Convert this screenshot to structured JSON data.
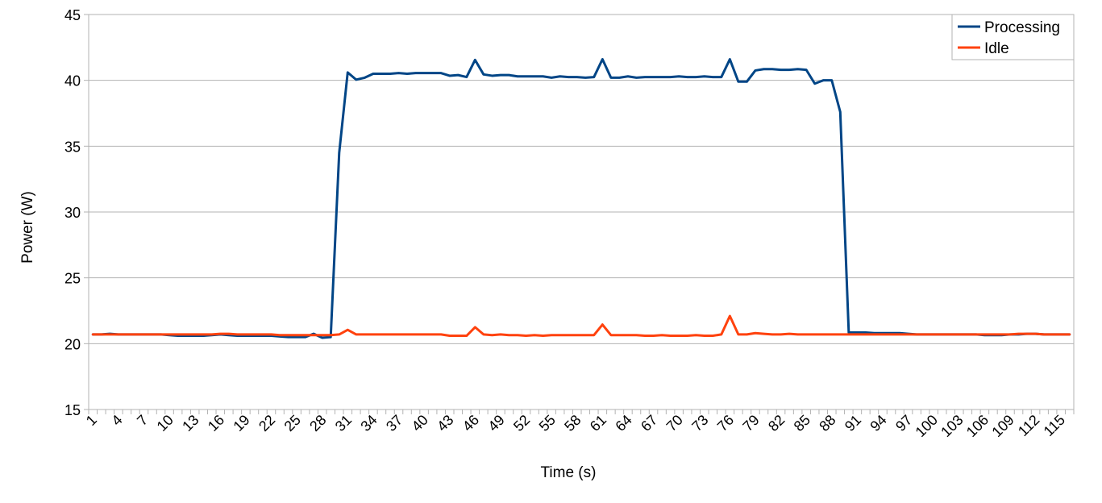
{
  "chart_data": {
    "type": "line",
    "title": "",
    "xlabel": "Time (s)",
    "ylabel": "Power (W)",
    "ylim": [
      15,
      45
    ],
    "yticks": [
      15,
      20,
      25,
      30,
      35,
      40,
      45
    ],
    "grid": true,
    "legend_position": "top-right",
    "x": [
      1,
      2,
      3,
      4,
      5,
      6,
      7,
      8,
      9,
      10,
      11,
      12,
      13,
      14,
      15,
      16,
      17,
      18,
      19,
      20,
      21,
      22,
      23,
      24,
      25,
      26,
      27,
      28,
      29,
      30,
      31,
      32,
      33,
      34,
      35,
      36,
      37,
      38,
      39,
      40,
      41,
      42,
      43,
      44,
      45,
      46,
      47,
      48,
      49,
      50,
      51,
      52,
      53,
      54,
      55,
      56,
      57,
      58,
      59,
      60,
      61,
      62,
      63,
      64,
      65,
      66,
      67,
      68,
      69,
      70,
      71,
      72,
      73,
      74,
      75,
      76,
      77,
      78,
      79,
      80,
      81,
      82,
      83,
      84,
      85,
      86,
      87,
      88,
      89,
      90,
      91,
      92,
      93,
      94,
      95,
      96,
      97,
      98,
      99,
      100,
      101,
      102,
      103,
      104,
      105,
      106,
      107,
      108,
      109,
      110,
      111,
      112,
      113,
      114,
      115,
      116
    ],
    "xtick_labels": [
      "1",
      "4",
      "7",
      "10",
      "13",
      "16",
      "19",
      "22",
      "25",
      "28",
      "31",
      "34",
      "37",
      "40",
      "43",
      "46",
      "49",
      "52",
      "55",
      "58",
      "61",
      "64",
      "67",
      "70",
      "73",
      "76",
      "79",
      "82",
      "85",
      "88",
      "91",
      "94",
      "97",
      "100",
      "103",
      "106",
      "109",
      "112",
      "115"
    ],
    "series": [
      {
        "name": "Processing",
        "color": "#004586",
        "values": [
          20.7,
          20.7,
          20.75,
          20.7,
          20.7,
          20.7,
          20.7,
          20.7,
          20.7,
          20.65,
          20.6,
          20.6,
          20.6,
          20.6,
          20.65,
          20.7,
          20.65,
          20.6,
          20.6,
          20.6,
          20.6,
          20.6,
          20.55,
          20.5,
          20.5,
          20.5,
          20.75,
          20.45,
          20.5,
          34.5,
          40.6,
          40.05,
          40.2,
          40.5,
          40.5,
          40.5,
          40.55,
          40.5,
          40.55,
          40.55,
          40.55,
          40.55,
          40.35,
          40.4,
          40.25,
          41.55,
          40.45,
          40.35,
          40.4,
          40.4,
          40.3,
          40.3,
          40.3,
          40.3,
          40.2,
          40.3,
          40.25,
          40.25,
          40.2,
          40.25,
          41.6,
          40.2,
          40.2,
          40.3,
          40.2,
          40.25,
          40.25,
          40.25,
          40.25,
          40.3,
          40.25,
          40.25,
          40.3,
          40.25,
          40.25,
          41.6,
          39.9,
          39.9,
          40.75,
          40.85,
          40.85,
          40.8,
          40.8,
          40.85,
          40.8,
          39.75,
          40.0,
          40.0,
          37.6,
          20.85,
          20.85,
          20.85,
          20.8,
          20.8,
          20.8,
          20.8,
          20.75,
          20.7,
          20.7,
          20.7,
          20.7,
          20.7,
          20.7,
          20.7,
          20.7,
          20.65,
          20.65,
          20.65,
          20.7,
          20.7,
          20.75,
          20.75,
          20.7,
          20.7,
          20.7,
          20.7
        ]
      },
      {
        "name": "Idle",
        "color": "#ff420e",
        "values": [
          20.7,
          20.7,
          20.7,
          20.7,
          20.7,
          20.7,
          20.7,
          20.7,
          20.7,
          20.7,
          20.7,
          20.7,
          20.7,
          20.7,
          20.7,
          20.75,
          20.75,
          20.7,
          20.7,
          20.7,
          20.7,
          20.7,
          20.65,
          20.65,
          20.65,
          20.65,
          20.65,
          20.65,
          20.65,
          20.7,
          21.05,
          20.7,
          20.7,
          20.7,
          20.7,
          20.7,
          20.7,
          20.7,
          20.7,
          20.7,
          20.7,
          20.7,
          20.6,
          20.6,
          20.6,
          21.25,
          20.7,
          20.65,
          20.7,
          20.65,
          20.65,
          20.6,
          20.65,
          20.6,
          20.65,
          20.65,
          20.65,
          20.65,
          20.65,
          20.65,
          21.45,
          20.65,
          20.65,
          20.65,
          20.65,
          20.6,
          20.6,
          20.65,
          20.6,
          20.6,
          20.6,
          20.65,
          20.6,
          20.6,
          20.7,
          22.1,
          20.7,
          20.7,
          20.8,
          20.75,
          20.7,
          20.7,
          20.75,
          20.7,
          20.7,
          20.7,
          20.7,
          20.7,
          20.7,
          20.7,
          20.7,
          20.7,
          20.7,
          20.7,
          20.7,
          20.7,
          20.7,
          20.7,
          20.7,
          20.7,
          20.7,
          20.7,
          20.7,
          20.7,
          20.7,
          20.7,
          20.7,
          20.7,
          20.7,
          20.75,
          20.75,
          20.75,
          20.7,
          20.7,
          20.7,
          20.7
        ]
      }
    ]
  }
}
